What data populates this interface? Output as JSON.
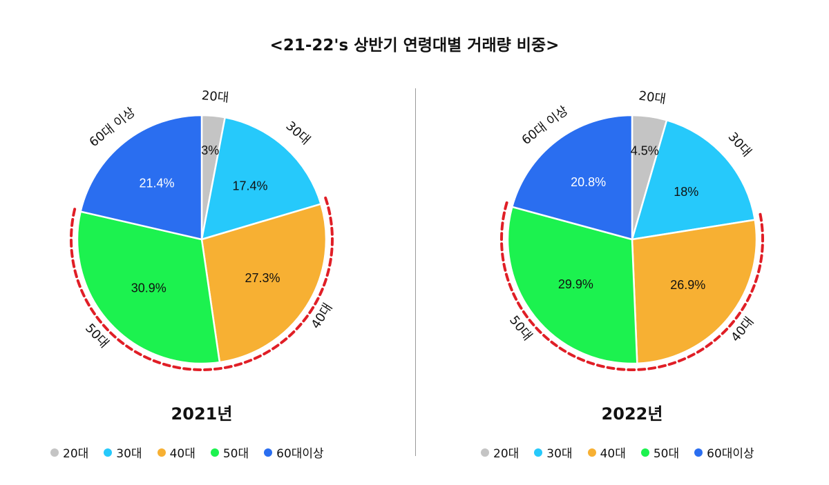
{
  "title": "<21-22's 상반기 연령대별 거래량 비중>",
  "chart_data": [
    {
      "type": "pie",
      "title": "2021년",
      "categories": [
        "20대",
        "30대",
        "40대",
        "50대",
        "60대 이상"
      ],
      "values": [
        3,
        17.4,
        27.3,
        30.9,
        21.4
      ],
      "value_labels": [
        "3%",
        "17.4%",
        "27.3%",
        "30.9%",
        "21.4%"
      ],
      "colors": [
        "#c4c4c4",
        "#26c9fb",
        "#f7b033",
        "#1cf24f",
        "#2a6ef0"
      ],
      "highlighted": [
        "40대",
        "50대"
      ],
      "highlight_color": "#e01e26",
      "legend": [
        "20대",
        "30대",
        "40대",
        "50대",
        "60대이상"
      ],
      "legend_position": "bottom"
    },
    {
      "type": "pie",
      "title": "2022년",
      "categories": [
        "20대",
        "30대",
        "40대",
        "50대",
        "60대 이상"
      ],
      "values": [
        4.5,
        18,
        26.9,
        29.9,
        20.8
      ],
      "value_labels": [
        "4.5%",
        "18%",
        "26.9%",
        "29.9%",
        "20.8%"
      ],
      "colors": [
        "#c4c4c4",
        "#26c9fb",
        "#f7b033",
        "#1cf24f",
        "#2a6ef0"
      ],
      "highlighted": [
        "40대",
        "50대"
      ],
      "highlight_color": "#e01e26",
      "legend": [
        "20대",
        "30대",
        "40대",
        "50대",
        "60대이상"
      ],
      "legend_position": "bottom"
    }
  ]
}
